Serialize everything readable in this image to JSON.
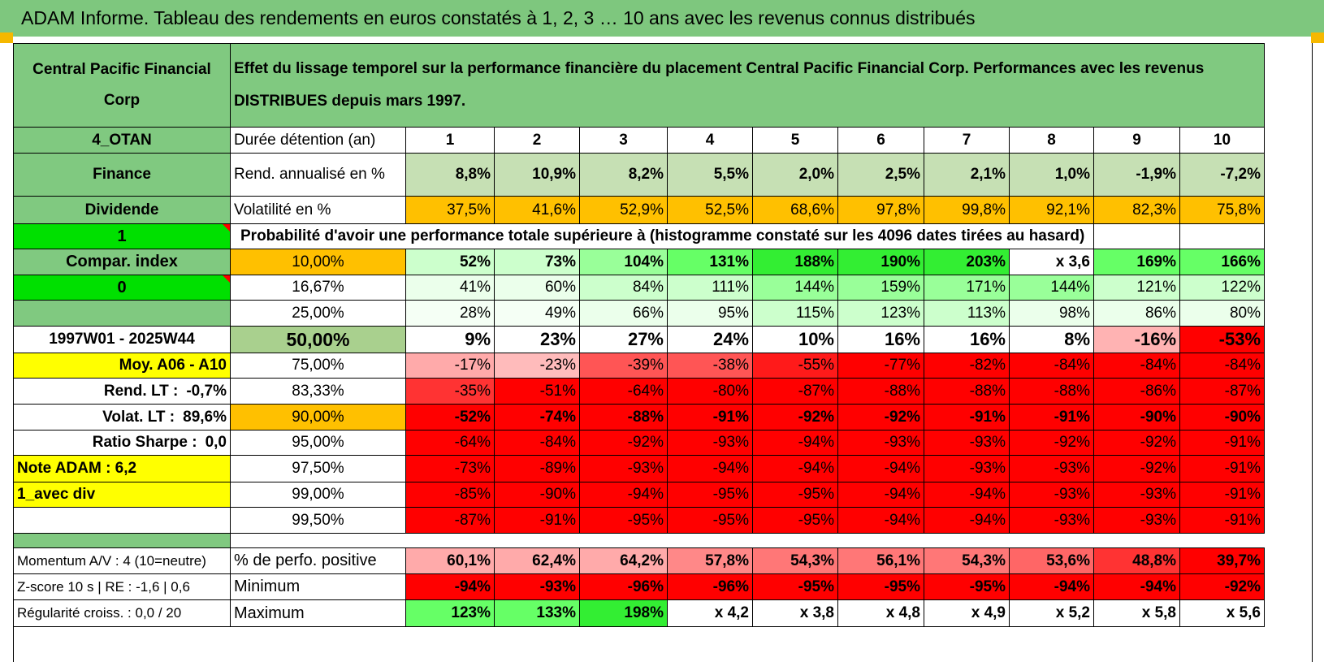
{
  "title": "ADAM Informe. Tableau des rendements en euros constatés à 1, 2, 3 … 10 ans avec les revenus connus distribués",
  "header": {
    "fund_name": "Central Pacific Financial Corp",
    "description": "Effet du lissage temporel sur la performance financière du placement Central Pacific Financial Corp. Performances avec les revenus DISTRIBUES depuis mars 1997."
  },
  "side": {
    "code": "4_OTAN",
    "sector": "Finance",
    "type": "Dividende",
    "flag1": "1",
    "compar_index": "Compar. index",
    "flag0": "0",
    "period": "1997W01 - 2025W44",
    "moy": "Moy. A06 - A10",
    "rend_lt_label": "Rend. LT :",
    "rend_lt_value": "-0,7%",
    "volat_lt_label": "Volat. LT :",
    "volat_lt_value": "89,6%",
    "sharpe_label": "Ratio Sharpe :",
    "sharpe_value": "0,0",
    "note": "Note ADAM : 6,2",
    "avec_div": "1_avec div"
  },
  "rows": {
    "duree": {
      "label": "Durée détention (an)",
      "values": [
        "1",
        "2",
        "3",
        "4",
        "5",
        "6",
        "7",
        "8",
        "9",
        "10"
      ]
    },
    "rend": {
      "label": "Rend. annualisé en %",
      "values": [
        "8,8%",
        "10,9%",
        "8,2%",
        "5,5%",
        "2,0%",
        "2,5%",
        "2,1%",
        "1,0%",
        "-1,9%",
        "-7,2%"
      ]
    },
    "vol": {
      "label": "Volatilité en %",
      "values": [
        "37,5%",
        "41,6%",
        "52,9%",
        "52,5%",
        "68,6%",
        "97,8%",
        "99,8%",
        "92,1%",
        "82,3%",
        "75,8%"
      ]
    },
    "prob_title": "Probabilité d'avoir une performance totale supérieure à (histogramme constaté sur les 4096 dates tirées au hasard)"
  },
  "quantiles": [
    {
      "label": "10,00%",
      "values": [
        "52%",
        "73%",
        "104%",
        "131%",
        "188%",
        "190%",
        "203%",
        "x 3,6",
        "169%",
        "166%"
      ]
    },
    {
      "label": "16,67%",
      "values": [
        "41%",
        "60%",
        "84%",
        "111%",
        "144%",
        "159%",
        "171%",
        "144%",
        "121%",
        "122%"
      ]
    },
    {
      "label": "25,00%",
      "values": [
        "28%",
        "49%",
        "66%",
        "95%",
        "115%",
        "123%",
        "113%",
        "98%",
        "86%",
        "80%"
      ]
    },
    {
      "label": "50,00%",
      "values": [
        "9%",
        "23%",
        "27%",
        "24%",
        "10%",
        "16%",
        "16%",
        "8%",
        "-16%",
        "-53%"
      ]
    },
    {
      "label": "75,00%",
      "values": [
        "-17%",
        "-23%",
        "-39%",
        "-38%",
        "-55%",
        "-77%",
        "-82%",
        "-84%",
        "-84%",
        "-84%"
      ]
    },
    {
      "label": "83,33%",
      "values": [
        "-35%",
        "-51%",
        "-64%",
        "-80%",
        "-87%",
        "-88%",
        "-88%",
        "-88%",
        "-86%",
        "-87%"
      ]
    },
    {
      "label": "90,00%",
      "values": [
        "-52%",
        "-74%",
        "-88%",
        "-91%",
        "-92%",
        "-92%",
        "-91%",
        "-91%",
        "-90%",
        "-90%"
      ]
    },
    {
      "label": "95,00%",
      "values": [
        "-64%",
        "-84%",
        "-92%",
        "-93%",
        "-94%",
        "-93%",
        "-93%",
        "-92%",
        "-92%",
        "-91%"
      ]
    },
    {
      "label": "97,50%",
      "values": [
        "-73%",
        "-89%",
        "-93%",
        "-94%",
        "-94%",
        "-94%",
        "-93%",
        "-93%",
        "-92%",
        "-91%"
      ]
    },
    {
      "label": "99,00%",
      "values": [
        "-85%",
        "-90%",
        "-94%",
        "-95%",
        "-95%",
        "-94%",
        "-94%",
        "-93%",
        "-93%",
        "-91%"
      ]
    },
    {
      "label": "99,50%",
      "values": [
        "-87%",
        "-91%",
        "-95%",
        "-95%",
        "-95%",
        "-94%",
        "-94%",
        "-93%",
        "-93%",
        "-91%"
      ]
    }
  ],
  "bottom": [
    {
      "side": "Momentum A/V : 4 (10=neutre)",
      "label": "% de perfo. positive",
      "values": [
        "60,1%",
        "62,4%",
        "64,2%",
        "57,8%",
        "54,3%",
        "56,1%",
        "54,3%",
        "53,6%",
        "48,8%",
        "39,7%"
      ]
    },
    {
      "side": "Z-score 10 s | RE : -1,6 | 0,6",
      "label": "Minimum",
      "values": [
        "-94%",
        "-93%",
        "-96%",
        "-96%",
        "-95%",
        "-95%",
        "-95%",
        "-94%",
        "-94%",
        "-92%"
      ]
    },
    {
      "side": "Régularité croiss. : 0,0 / 20",
      "label": "Maximum",
      "values": [
        "123%",
        "133%",
        "198%",
        "x 4,2",
        "x 3,8",
        "x 4,8",
        "x 4,9",
        "x 5,2",
        "x 5,8",
        "x 5,6"
      ]
    }
  ],
  "colors": {
    "header_green": "#80c980",
    "bright_green": "#00e000",
    "orange": "#ffc000",
    "yellow": "#ffff00",
    "red": "#ff0000",
    "light_red": "#ff9999"
  }
}
